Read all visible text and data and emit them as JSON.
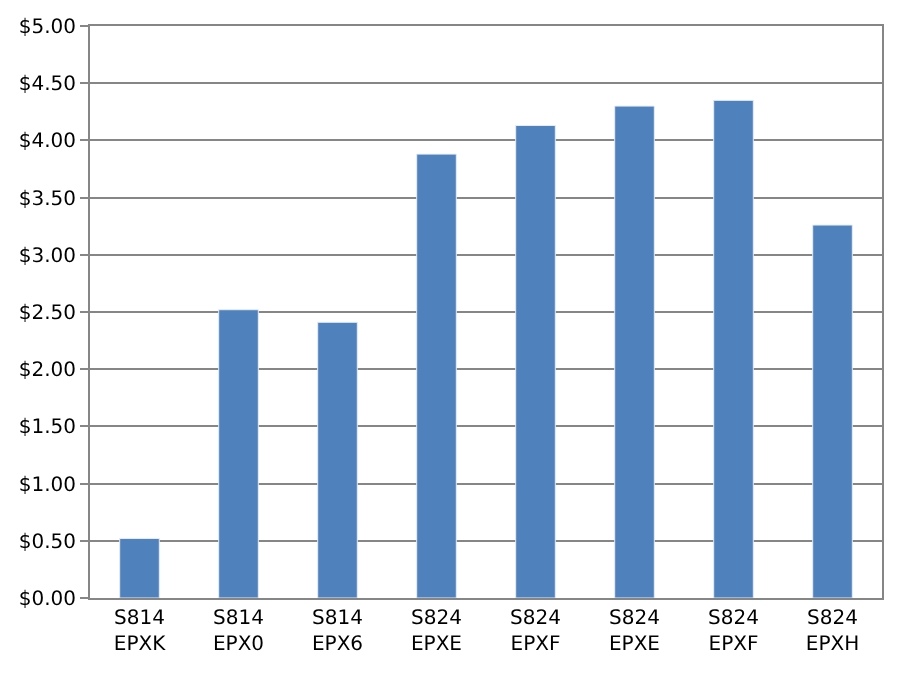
{
  "chart_data": {
    "type": "bar",
    "categories": [
      "S814\nEPXK",
      "S814\nEPX0",
      "S814\nEPX6",
      "S824\nEPXE",
      "S824\nEPXF",
      "S824\nEPXE",
      "S824\nEPXF",
      "S824\nEPXH"
    ],
    "values": [
      0.52,
      2.52,
      2.41,
      3.88,
      4.13,
      4.3,
      4.35,
      3.26
    ],
    "color": "#4f81bd",
    "ylim": [
      0,
      5
    ],
    "yticks": [
      {
        "value": 0,
        "label": "$0.00"
      },
      {
        "value": 0.5,
        "label": "$0.50"
      },
      {
        "value": 1,
        "label": "$1.00"
      },
      {
        "value": 1.5,
        "label": "$1.50"
      },
      {
        "value": 2,
        "label": "$2.00"
      },
      {
        "value": 2.5,
        "label": "$2.50"
      },
      {
        "value": 3,
        "label": "$3.00"
      },
      {
        "value": 3.5,
        "label": "$3.50"
      },
      {
        "value": 4,
        "label": "$4.00"
      },
      {
        "value": 4.5,
        "label": "$4.50"
      },
      {
        "value": 5,
        "label": "$5.00"
      }
    ],
    "grid": "y"
  }
}
